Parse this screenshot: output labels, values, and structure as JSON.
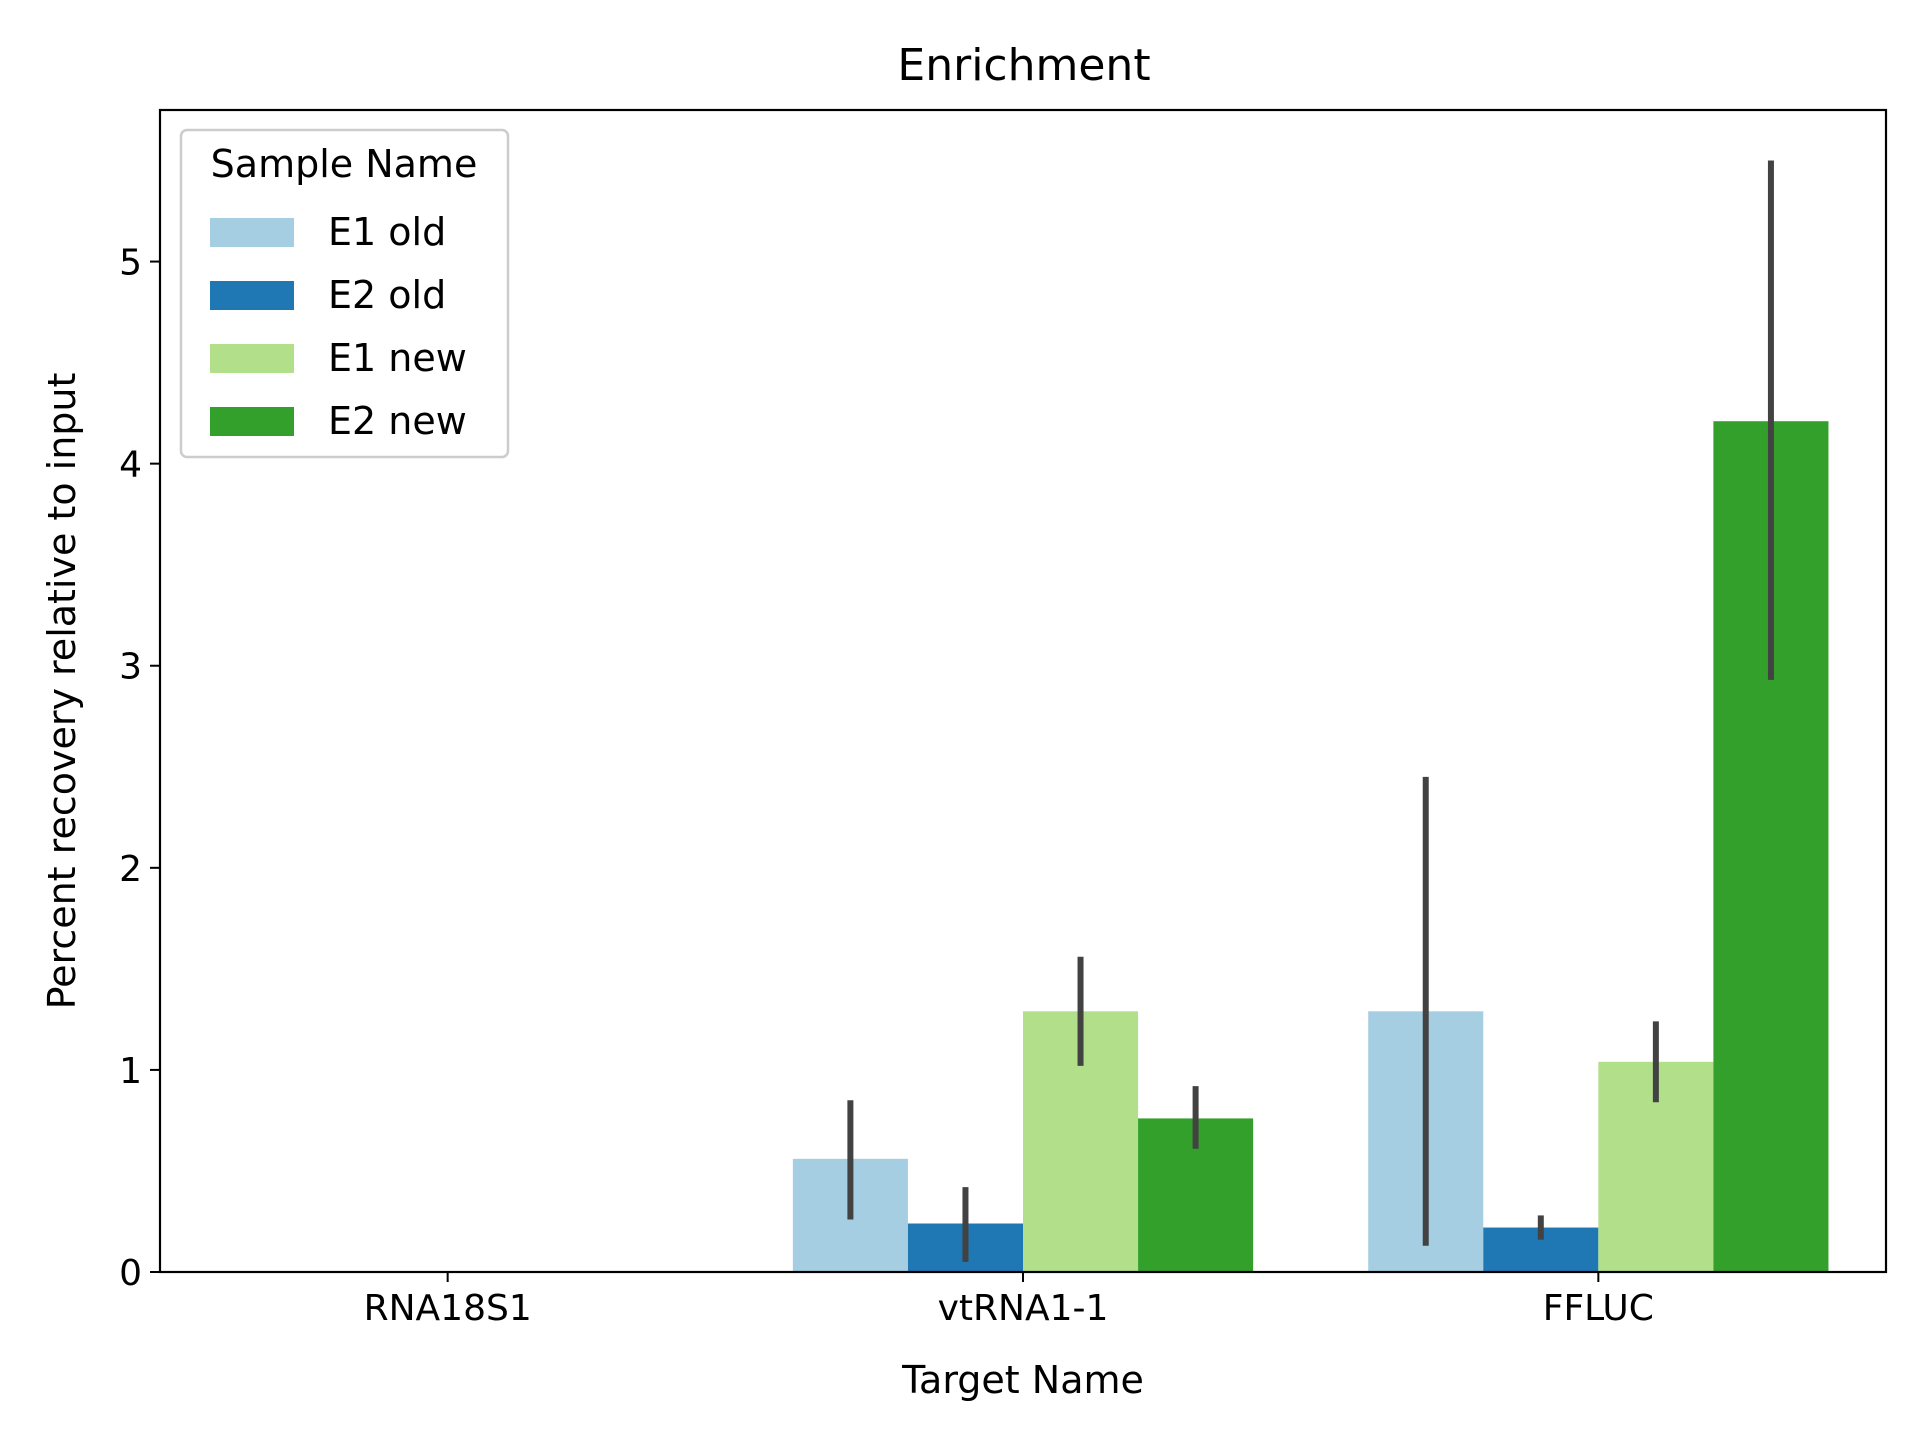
{
  "chart_data": {
    "type": "bar",
    "title": "Enrichment",
    "xlabel": "Target Name",
    "ylabel": "Percent recovery relative to input",
    "categories": [
      "RNA18S1",
      "vtRNA1-1",
      "FFLUC"
    ],
    "ylim": [
      0,
      5.75
    ],
    "yticks": [
      0,
      1,
      2,
      3,
      4,
      5
    ],
    "grid": false,
    "legend": {
      "title": "Sample Name",
      "placement": "top-left"
    },
    "series": [
      {
        "name": "E1 old",
        "color": "#a6cee3",
        "values": [
          0,
          0.56,
          1.29
        ],
        "error_low": [
          null,
          0.26,
          0.13
        ],
        "error_high": [
          null,
          0.85,
          2.45
        ]
      },
      {
        "name": "E2 old",
        "color": "#1f78b4",
        "values": [
          0,
          0.24,
          0.22
        ],
        "error_low": [
          null,
          0.05,
          0.16
        ],
        "error_high": [
          null,
          0.42,
          0.28
        ]
      },
      {
        "name": "E1 new",
        "color": "#b2df8a",
        "values": [
          0,
          1.29,
          1.04
        ],
        "error_low": [
          null,
          1.02,
          0.84
        ],
        "error_high": [
          null,
          1.56,
          1.24
        ]
      },
      {
        "name": "E2 new",
        "color": "#33a02c",
        "values": [
          0,
          0.76,
          4.21
        ],
        "error_low": [
          null,
          0.61,
          2.93
        ],
        "error_high": [
          null,
          0.92,
          5.5
        ]
      }
    ],
    "error_bar_color": "#424242"
  }
}
